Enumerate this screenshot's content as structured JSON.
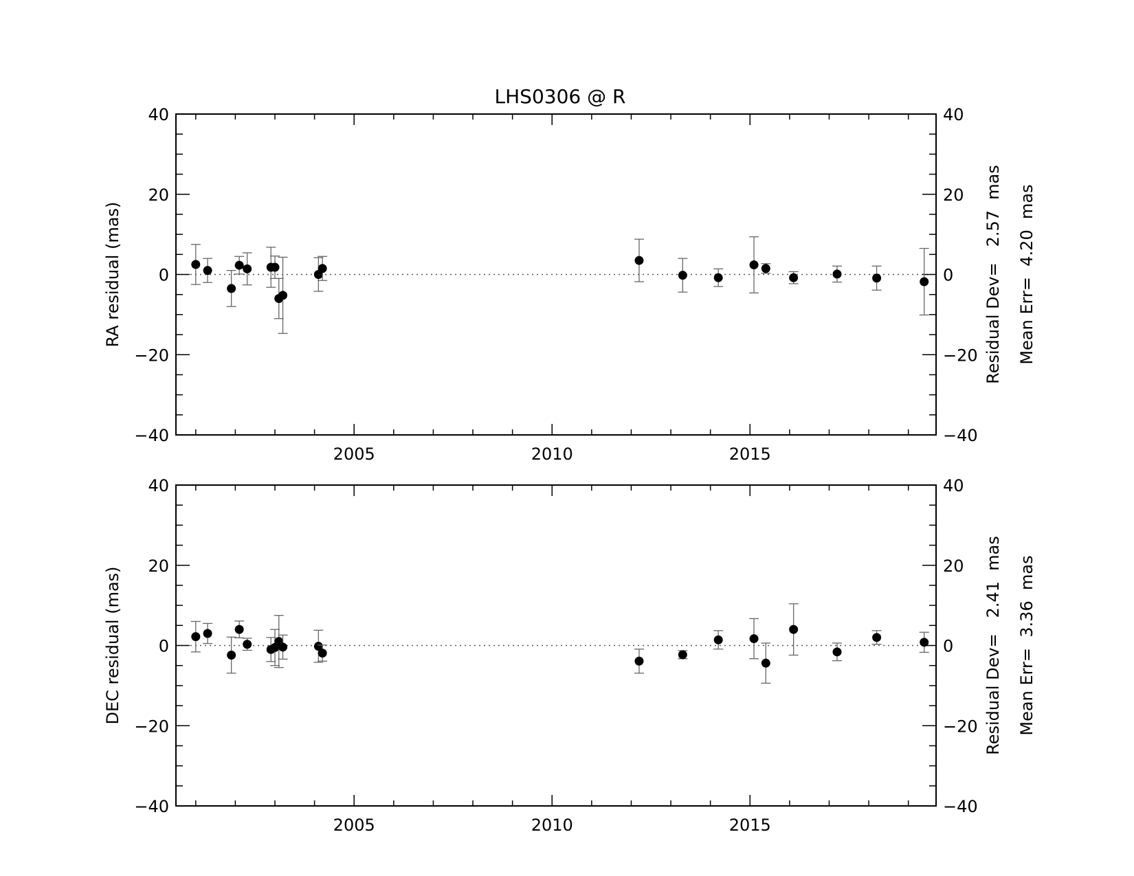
{
  "chart_data": [
    {
      "type": "scatter",
      "title": "LHS0306 @ R",
      "xlabel": "",
      "ylabel": "RA residual (mas)",
      "xlim": [
        2000.5,
        2019.7
      ],
      "ylim": [
        -40,
        40
      ],
      "xticks": [
        2005,
        2010,
        2015
      ],
      "yticks": [
        -40,
        -20,
        0,
        20,
        40
      ],
      "zero_line": "dotted",
      "grid": false,
      "stats": [
        "Residual Dev=   2.57  mas",
        "Mean Err=  4.20  mas"
      ],
      "points": [
        {
          "x": 2001.0,
          "y": 2.5,
          "err": 5.0
        },
        {
          "x": 2001.3,
          "y": 1.0,
          "err": 3.0
        },
        {
          "x": 2001.9,
          "y": -3.5,
          "err": 4.5
        },
        {
          "x": 2002.1,
          "y": 2.3,
          "err": 2.2
        },
        {
          "x": 2002.3,
          "y": 1.4,
          "err": 4.0
        },
        {
          "x": 2002.9,
          "y": 1.8,
          "err": 5.0
        },
        {
          "x": 2003.0,
          "y": 1.8,
          "err": 2.8
        },
        {
          "x": 2003.1,
          "y": -6.0,
          "err": 5.0
        },
        {
          "x": 2003.2,
          "y": -5.2,
          "err": 9.5
        },
        {
          "x": 2004.1,
          "y": 0.0,
          "err": 4.2
        },
        {
          "x": 2004.2,
          "y": 1.5,
          "err": 3.0
        },
        {
          "x": 2012.2,
          "y": 3.5,
          "err": 5.3
        },
        {
          "x": 2013.3,
          "y": -0.2,
          "err": 4.2
        },
        {
          "x": 2014.2,
          "y": -0.8,
          "err": 2.2
        },
        {
          "x": 2015.1,
          "y": 2.4,
          "err": 7.0
        },
        {
          "x": 2015.4,
          "y": 1.5,
          "err": 1.2
        },
        {
          "x": 2016.1,
          "y": -0.8,
          "err": 1.5
        },
        {
          "x": 2017.2,
          "y": 0.1,
          "err": 2.0
        },
        {
          "x": 2018.2,
          "y": -0.9,
          "err": 3.0
        },
        {
          "x": 2019.4,
          "y": -1.8,
          "err": 8.3
        }
      ]
    },
    {
      "type": "scatter",
      "title": "",
      "xlabel": "",
      "ylabel": "DEC residual (mas)",
      "xlim": [
        2000.5,
        2019.7
      ],
      "ylim": [
        -40,
        40
      ],
      "xticks": [
        2005,
        2010,
        2015
      ],
      "yticks": [
        -40,
        -20,
        0,
        20,
        40
      ],
      "zero_line": "dotted",
      "grid": false,
      "stats": [
        "Residual Dev=   2.41  mas",
        "Mean Err=  3.36  mas"
      ],
      "points": [
        {
          "x": 2001.0,
          "y": 2.2,
          "err": 3.8
        },
        {
          "x": 2001.3,
          "y": 3.0,
          "err": 2.5
        },
        {
          "x": 2001.9,
          "y": -2.4,
          "err": 4.5
        },
        {
          "x": 2002.1,
          "y": 4.0,
          "err": 2.1
        },
        {
          "x": 2002.3,
          "y": 0.3,
          "err": 1.5
        },
        {
          "x": 2002.9,
          "y": -1.0,
          "err": 3.0
        },
        {
          "x": 2003.0,
          "y": -0.5,
          "err": 4.5
        },
        {
          "x": 2003.1,
          "y": 1.0,
          "err": 6.5
        },
        {
          "x": 2003.2,
          "y": -0.4,
          "err": 3.0
        },
        {
          "x": 2004.1,
          "y": -0.2,
          "err": 4.0
        },
        {
          "x": 2004.2,
          "y": -1.9,
          "err": 2.0
        },
        {
          "x": 2012.2,
          "y": -3.9,
          "err": 3.0
        },
        {
          "x": 2013.3,
          "y": -2.3,
          "err": 1.0
        },
        {
          "x": 2014.2,
          "y": 1.4,
          "err": 2.3
        },
        {
          "x": 2015.1,
          "y": 1.7,
          "err": 5.0
        },
        {
          "x": 2015.4,
          "y": -4.4,
          "err": 5.0
        },
        {
          "x": 2016.1,
          "y": 4.0,
          "err": 6.4
        },
        {
          "x": 2017.2,
          "y": -1.6,
          "err": 2.2
        },
        {
          "x": 2018.2,
          "y": 2.0,
          "err": 1.7
        },
        {
          "x": 2019.4,
          "y": 0.8,
          "err": 2.5
        }
      ]
    }
  ]
}
